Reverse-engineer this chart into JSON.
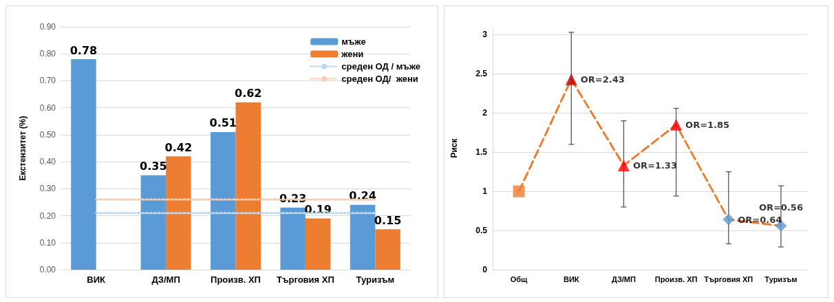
{
  "chart_data": [
    {
      "type": "bar",
      "ylabel": "Екстензитет (%)",
      "categories": [
        "ВИК",
        "ДЗ/МП",
        "Произв. ХП",
        "Търговия ХП",
        "Туризъм"
      ],
      "series": [
        {
          "name": "мъже",
          "color": "#5b9bd5",
          "values": [
            0.78,
            0.35,
            0.51,
            0.23,
            0.24
          ]
        },
        {
          "name": "жени",
          "color": "#ed7d31",
          "values": [
            null,
            0.42,
            0.62,
            0.19,
            0.15
          ]
        },
        {
          "name": "среден ОД / мъже",
          "type": "line",
          "line_style": "dotted",
          "marker": "none",
          "color": "#bdd7ee",
          "values": [
            0.21,
            0.21,
            0.21,
            0.21,
            0.21
          ],
          "value_labels": [
            null,
            null,
            null,
            null,
            null
          ]
        },
        {
          "name": "среден ОД/  жени",
          "type": "line",
          "line_style": "dotted",
          "marker": "none",
          "color": "#f8cbad",
          "values": [
            0.26,
            0.26,
            0.26,
            0.26,
            0.26
          ],
          "value_labels": [
            null,
            null,
            null,
            null,
            null
          ]
        }
      ],
      "data_labels": true,
      "ylim": [
        0,
        0.9
      ],
      "yticks": [
        {
          "value": 0,
          "label": "0.00"
        },
        {
          "value": 0.1,
          "label": "0.10"
        },
        {
          "value": 0.2,
          "label": "0.20"
        },
        {
          "value": 0.3,
          "label": "0.30"
        },
        {
          "value": 0.4,
          "label": "0.40"
        },
        {
          "value": 0.5,
          "label": "0.50"
        },
        {
          "value": 0.6,
          "label": "0.60"
        },
        {
          "value": 0.7,
          "label": "0.70"
        },
        {
          "value": 0.8,
          "label": "0.80"
        },
        {
          "value": 0.9,
          "label": "0.90"
        }
      ],
      "grid": "y",
      "legend": "top right"
    },
    {
      "type": "line",
      "ylabel": "Риск",
      "categories": [
        "Общ",
        "ВИК",
        "ДЗ/МП",
        "Произв. ХП",
        "Търговия ХП",
        "Туризъм"
      ],
      "series": [
        {
          "type": "line",
          "color": "#ed7d31",
          "line_style": "dashed",
          "marker": "none",
          "values": [
            1,
            2.43,
            1.33,
            1.85,
            0.64,
            0.56
          ]
        },
        {
          "type": "scatter",
          "marker": "square",
          "color": "#ed7d31",
          "x": [
            "Общ"
          ],
          "values": [
            1
          ]
        },
        {
          "type": "scatter",
          "marker": "triangle",
          "colors": [
            "#c00000",
            "#ff0000",
            "#ff0000"
          ],
          "x": [
            "ВИК",
            "ДЗ/МП",
            "Произв. ХП"
          ],
          "values": [
            2.43,
            1.33,
            1.85
          ],
          "errors": [
            [
              1.6,
              3.03
            ],
            [
              0.8,
              1.9
            ],
            [
              0.94,
              2.06
            ]
          ],
          "value_labels": [
            "OR=2.43",
            "OR=1.33",
            "OR=1.85"
          ]
        },
        {
          "type": "scatter",
          "marker": "diamond",
          "color": "#5b9bd5",
          "x": [
            "Търговия ХП",
            "Туризъм"
          ],
          "values": [
            0.64,
            0.56
          ],
          "errors": [
            [
              0.33,
              1.25
            ],
            [
              0.29,
              1.07
            ]
          ],
          "value_labels": [
            "OR=0.64",
            "OR=0.56"
          ]
        }
      ],
      "ylim": [
        0,
        3.1
      ],
      "yticks": [
        0,
        0.5,
        1,
        1.5,
        2,
        2.5,
        3
      ],
      "grid": "y",
      "legend": false
    }
  ]
}
